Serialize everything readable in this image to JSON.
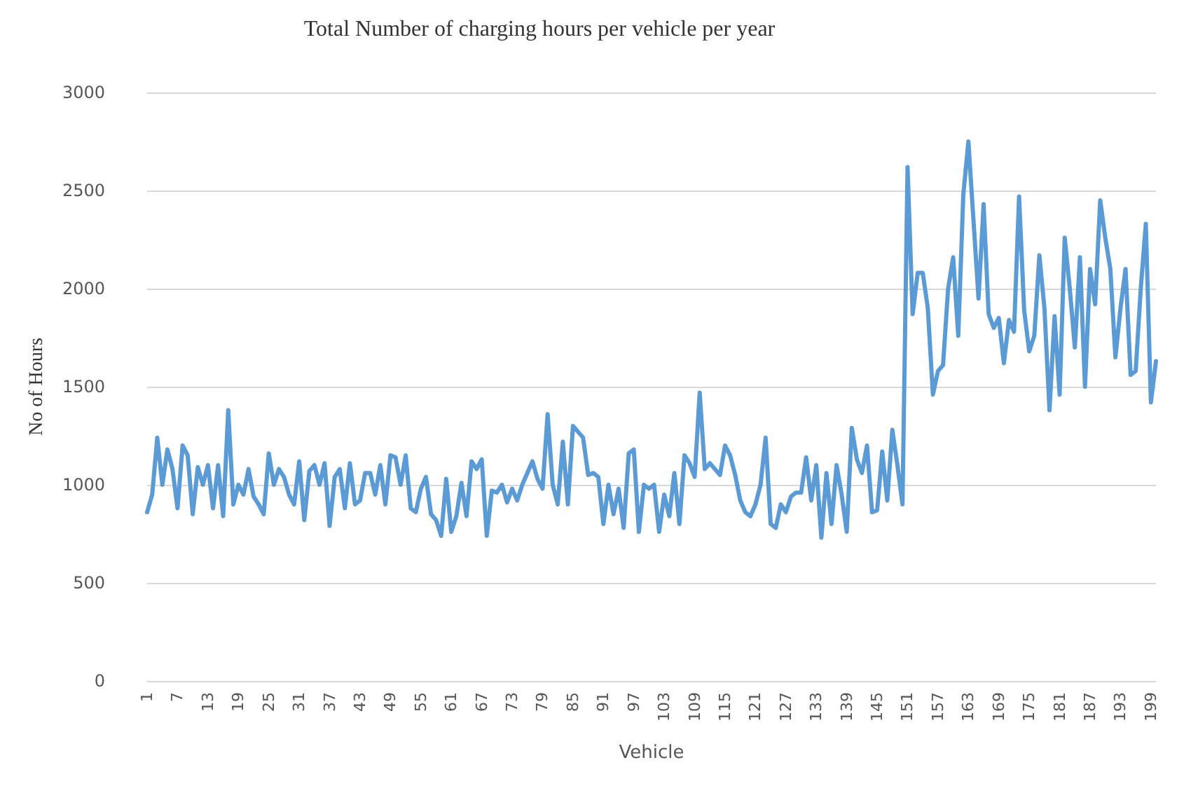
{
  "chart_data": {
    "type": "line",
    "title": "Total Number of charging hours per vehicle per year",
    "xlabel": "Vehicle",
    "ylabel": "No of Hours",
    "categories": [
      "1",
      null,
      null,
      null,
      null,
      null,
      "7",
      null,
      null,
      null,
      null,
      null,
      "13",
      null,
      null,
      null,
      null,
      null,
      "19",
      null,
      null,
      null,
      null,
      null,
      "25",
      null,
      null,
      null,
      null,
      null,
      "31",
      null,
      null,
      null,
      null,
      null,
      "37",
      null,
      null,
      null,
      null,
      null,
      "43",
      null,
      null,
      null,
      null,
      null,
      "49",
      null,
      null,
      null,
      null,
      null,
      "55",
      null,
      null,
      null,
      null,
      null,
      "61",
      null,
      null,
      null,
      null,
      null,
      "67",
      null,
      null,
      null,
      null,
      null,
      "73",
      null,
      null,
      null,
      null,
      null,
      "79",
      null,
      null,
      null,
      null,
      null,
      "85",
      null,
      null,
      null,
      null,
      null,
      "91",
      null,
      null,
      null,
      null,
      null,
      "97",
      null,
      null,
      null,
      null,
      null,
      "103",
      null,
      null,
      null,
      null,
      null,
      "109",
      null,
      null,
      null,
      null,
      null,
      "115",
      null,
      null,
      null,
      null,
      null,
      "121",
      null,
      null,
      null,
      null,
      null,
      "127",
      null,
      null,
      null,
      null,
      null,
      "133",
      null,
      null,
      null,
      null,
      null,
      "139",
      null,
      null,
      null,
      null,
      null,
      "145",
      null,
      null,
      null,
      null,
      null,
      "151",
      null,
      null,
      null,
      null,
      null,
      "157",
      null,
      null,
      null,
      null,
      null,
      "163",
      null,
      null,
      null,
      null,
      null,
      "169",
      null,
      null,
      null,
      null,
      null,
      "175",
      null,
      null,
      null,
      null,
      null,
      "181",
      null,
      null,
      null,
      null,
      null,
      "187",
      null,
      null,
      null,
      null,
      null,
      "193",
      null,
      null,
      null,
      null,
      null,
      "199",
      null
    ],
    "series": [
      {
        "color": "#5b9bd5",
        "values": [
          860,
          950,
          1240,
          1000,
          1180,
          1080,
          880,
          1200,
          1150,
          850,
          1090,
          1000,
          1100,
          880,
          1100,
          840,
          1380,
          900,
          1000,
          950,
          1080,
          940,
          900,
          850,
          1160,
          1000,
          1080,
          1040,
          950,
          900,
          1120,
          820,
          1070,
          1100,
          1000,
          1110,
          790,
          1040,
          1080,
          880,
          1110,
          900,
          920,
          1060,
          1060,
          950,
          1100,
          900,
          1150,
          1140,
          1000,
          1150,
          880,
          860,
          980,
          1040,
          850,
          820,
          740,
          1030,
          760,
          840,
          1010,
          840,
          1120,
          1080,
          1130,
          740,
          970,
          960,
          1000,
          910,
          980,
          920,
          1000,
          1060,
          1120,
          1030,
          980,
          1360,
          1000,
          900,
          1220,
          900,
          1300,
          1270,
          1240,
          1050,
          1060,
          1040,
          800,
          1000,
          850,
          980,
          780,
          1160,
          1180,
          760,
          1000,
          980,
          1000,
          760,
          950,
          840,
          1060,
          800,
          1150,
          1110,
          1040,
          1470,
          1080,
          1110,
          1080,
          1050,
          1200,
          1150,
          1050,
          920,
          860,
          840,
          900,
          1000,
          1240,
          800,
          780,
          900,
          860,
          940,
          960,
          960,
          1140,
          920,
          1100,
          730,
          1060,
          800,
          1100,
          950,
          760,
          1290,
          1130,
          1060,
          1200,
          860,
          870,
          1170,
          920,
          1280,
          1100,
          900,
          2620,
          1870,
          2080,
          2080,
          1900,
          1460,
          1580,
          1610,
          2000,
          2160,
          1760,
          2480,
          2750,
          2350,
          1950,
          2430,
          1870,
          1800,
          1850,
          1620,
          1840,
          1780,
          2470,
          1890,
          1680,
          1760,
          2170,
          1900,
          1380,
          1860,
          1460,
          2260,
          2000,
          1700,
          2160,
          1500,
          2100,
          1920,
          2450,
          2260,
          2100,
          1650,
          1900,
          2100,
          1560,
          1580,
          2000,
          2330,
          1420,
          1630
        ]
      }
    ],
    "ylim": [
      0,
      3000
    ],
    "yticks": [
      0,
      500,
      1000,
      1500,
      2000,
      2500,
      3000
    ],
    "grid": "y",
    "marker": "none",
    "line_style": "solid"
  }
}
